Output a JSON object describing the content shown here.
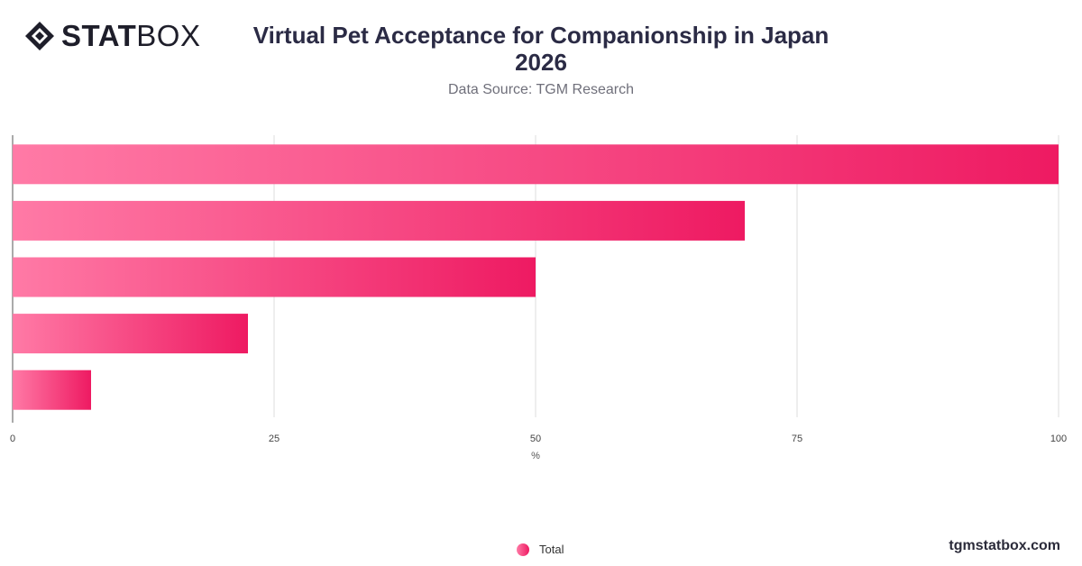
{
  "brand": {
    "logo_bold": "STAT",
    "logo_light": "BOX",
    "footer_url": "tgmstatbox.com"
  },
  "header": {
    "title_line1": "Virtual Pet Acceptance for Companionship in Japan",
    "title_line2": "2026",
    "subtitle": "Data Source: TGM Research"
  },
  "colors": {
    "bar_start": "#ff7aa6",
    "bar_end": "#ee1a62",
    "grid": "#dedede",
    "axis": "#555555"
  },
  "chart_data": {
    "type": "bar",
    "orientation": "horizontal",
    "categories": [
      "",
      "",
      "",
      "",
      ""
    ],
    "series": [
      {
        "name": "Total",
        "values": [
          100,
          70,
          50,
          22.5,
          7.5
        ]
      }
    ],
    "xlabel": "%",
    "ylabel": "",
    "xlim": [
      0,
      100
    ],
    "xticks": [
      0,
      25,
      50,
      75,
      100
    ],
    "grid": true,
    "legend": "bottom-center"
  }
}
